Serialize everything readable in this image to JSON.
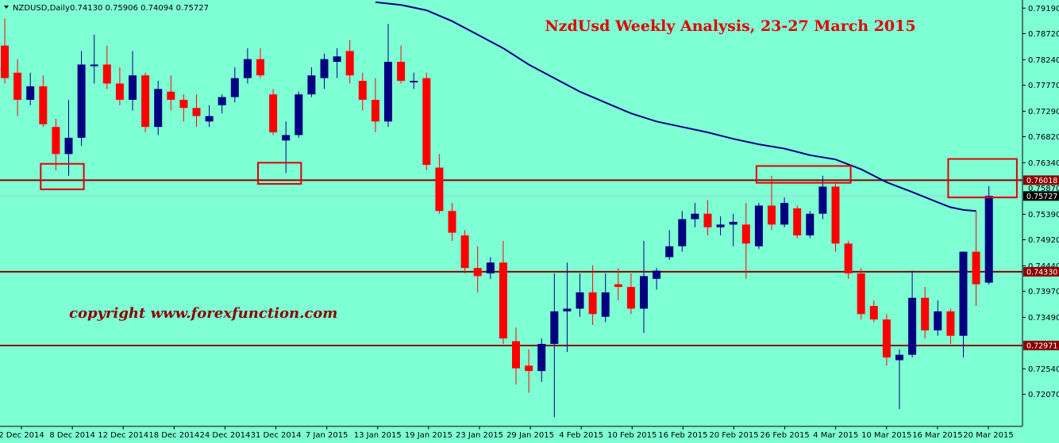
{
  "header": {
    "symbol": "NZDUSD,Daily",
    "ohlc": "0.74130 0.75906 0.74094 0.75727"
  },
  "title": "NzdUsd Weekly Analysis, 23-27 March 2015",
  "copyright": "copyright  www.forexfunction.com",
  "colors": {
    "background": "#7fffd4",
    "bull": "#000080",
    "bear": "#ff0000",
    "ma": "#000080",
    "level_line": "#8b0000",
    "box": "#e00000"
  },
  "chart_data": {
    "type": "candlestick",
    "ylim": [
      0.7148,
      0.7934
    ],
    "y_ticks": [
      "0.79190",
      "0.78720",
      "0.78240",
      "0.77770",
      "0.77290",
      "0.76820",
      "0.76340",
      "0.75390",
      "0.74920",
      "0.74440",
      "0.73970",
      "0.73490",
      "0.72540",
      "0.72070"
    ],
    "x_ticks": [
      "2 Dec 2014",
      "8 Dec 2014",
      "12 Dec 2014",
      "18 Dec 2014",
      "24 Dec 2014",
      "31 Dec 2014",
      "7 Jan 2015",
      "13 Jan 2015",
      "19 Jan 2015",
      "23 Jan 2015",
      "29 Jan 2015",
      "4 Feb 2015",
      "10 Feb 2015",
      "16 Feb 2015",
      "20 Feb 2015",
      "26 Feb 2015",
      "4 Mar 2015",
      "10 Mar 2015",
      "16 Mar 2015",
      "20 Mar 2015"
    ],
    "horizontal_levels": [
      {
        "value": 0.76018,
        "label": "0.76018"
      },
      {
        "value": 0.7433,
        "label": "0.74330"
      },
      {
        "value": 0.72971,
        "label": "0.72971"
      }
    ],
    "price_labels": [
      {
        "value": 0.7587,
        "label": "0.75870"
      },
      {
        "value": 0.75727,
        "label": "0.75727"
      }
    ],
    "candles": [
      {
        "o": 0.785,
        "h": 0.79,
        "l": 0.778,
        "c": 0.779
      },
      {
        "o": 0.78,
        "h": 0.7825,
        "l": 0.772,
        "c": 0.775
      },
      {
        "o": 0.775,
        "h": 0.78,
        "l": 0.774,
        "c": 0.7775
      },
      {
        "o": 0.7775,
        "h": 0.7795,
        "l": 0.77,
        "c": 0.7705
      },
      {
        "o": 0.77,
        "h": 0.7715,
        "l": 0.762,
        "c": 0.765
      },
      {
        "o": 0.765,
        "h": 0.775,
        "l": 0.761,
        "c": 0.768
      },
      {
        "o": 0.768,
        "h": 0.784,
        "l": 0.7665,
        "c": 0.7815
      },
      {
        "o": 0.7812,
        "h": 0.787,
        "l": 0.778,
        "c": 0.7815
      },
      {
        "o": 0.7815,
        "h": 0.785,
        "l": 0.777,
        "c": 0.778
      },
      {
        "o": 0.778,
        "h": 0.781,
        "l": 0.774,
        "c": 0.775
      },
      {
        "o": 0.775,
        "h": 0.784,
        "l": 0.773,
        "c": 0.7795
      },
      {
        "o": 0.7795,
        "h": 0.78,
        "l": 0.769,
        "c": 0.77
      },
      {
        "o": 0.77,
        "h": 0.7785,
        "l": 0.7685,
        "c": 0.777
      },
      {
        "o": 0.7765,
        "h": 0.7795,
        "l": 0.773,
        "c": 0.775
      },
      {
        "o": 0.775,
        "h": 0.776,
        "l": 0.771,
        "c": 0.7735
      },
      {
        "o": 0.7735,
        "h": 0.776,
        "l": 0.77,
        "c": 0.772
      },
      {
        "o": 0.771,
        "h": 0.774,
        "l": 0.77,
        "c": 0.772
      },
      {
        "o": 0.774,
        "h": 0.776,
        "l": 0.7725,
        "c": 0.7755
      },
      {
        "o": 0.7755,
        "h": 0.781,
        "l": 0.7745,
        "c": 0.779
      },
      {
        "o": 0.779,
        "h": 0.7845,
        "l": 0.778,
        "c": 0.7825
      },
      {
        "o": 0.7825,
        "h": 0.7845,
        "l": 0.779,
        "c": 0.7795
      },
      {
        "o": 0.776,
        "h": 0.777,
        "l": 0.7685,
        "c": 0.769
      },
      {
        "o": 0.7675,
        "h": 0.771,
        "l": 0.7615,
        "c": 0.7685
      },
      {
        "o": 0.7685,
        "h": 0.7765,
        "l": 0.768,
        "c": 0.776
      },
      {
        "o": 0.776,
        "h": 0.781,
        "l": 0.7755,
        "c": 0.7795
      },
      {
        "o": 0.779,
        "h": 0.7835,
        "l": 0.777,
        "c": 0.7825
      },
      {
        "o": 0.782,
        "h": 0.7845,
        "l": 0.779,
        "c": 0.783
      },
      {
        "o": 0.784,
        "h": 0.786,
        "l": 0.778,
        "c": 0.7795
      },
      {
        "o": 0.7785,
        "h": 0.78,
        "l": 0.773,
        "c": 0.775
      },
      {
        "o": 0.775,
        "h": 0.779,
        "l": 0.769,
        "c": 0.771
      },
      {
        "o": 0.771,
        "h": 0.789,
        "l": 0.77,
        "c": 0.782
      },
      {
        "o": 0.782,
        "h": 0.785,
        "l": 0.778,
        "c": 0.7785
      },
      {
        "o": 0.7785,
        "h": 0.78,
        "l": 0.777,
        "c": 0.7785
      },
      {
        "o": 0.779,
        "h": 0.78,
        "l": 0.762,
        "c": 0.763
      },
      {
        "o": 0.7625,
        "h": 0.765,
        "l": 0.754,
        "c": 0.7545
      },
      {
        "o": 0.7545,
        "h": 0.756,
        "l": 0.749,
        "c": 0.7505
      },
      {
        "o": 0.75,
        "h": 0.751,
        "l": 0.743,
        "c": 0.744
      },
      {
        "o": 0.744,
        "h": 0.748,
        "l": 0.7395,
        "c": 0.7425
      },
      {
        "o": 0.743,
        "h": 0.746,
        "l": 0.742,
        "c": 0.745
      },
      {
        "o": 0.745,
        "h": 0.749,
        "l": 0.73,
        "c": 0.731
      },
      {
        "o": 0.7305,
        "h": 0.733,
        "l": 0.7225,
        "c": 0.7255
      },
      {
        "o": 0.726,
        "h": 0.729,
        "l": 0.721,
        "c": 0.725
      },
      {
        "o": 0.725,
        "h": 0.731,
        "l": 0.723,
        "c": 0.73
      },
      {
        "o": 0.73,
        "h": 0.743,
        "l": 0.7165,
        "c": 0.736
      },
      {
        "o": 0.736,
        "h": 0.745,
        "l": 0.7285,
        "c": 0.7365
      },
      {
        "o": 0.7365,
        "h": 0.743,
        "l": 0.735,
        "c": 0.7395
      },
      {
        "o": 0.7395,
        "h": 0.7445,
        "l": 0.7335,
        "c": 0.7355
      },
      {
        "o": 0.735,
        "h": 0.743,
        "l": 0.734,
        "c": 0.7395
      },
      {
        "o": 0.741,
        "h": 0.744,
        "l": 0.738,
        "c": 0.7405
      },
      {
        "o": 0.7405,
        "h": 0.743,
        "l": 0.7355,
        "c": 0.7365
      },
      {
        "o": 0.7365,
        "h": 0.749,
        "l": 0.732,
        "c": 0.7425
      },
      {
        "o": 0.742,
        "h": 0.744,
        "l": 0.74,
        "c": 0.7435
      },
      {
        "o": 0.746,
        "h": 0.751,
        "l": 0.7455,
        "c": 0.748
      },
      {
        "o": 0.748,
        "h": 0.7545,
        "l": 0.747,
        "c": 0.753
      },
      {
        "o": 0.753,
        "h": 0.756,
        "l": 0.7515,
        "c": 0.754
      },
      {
        "o": 0.754,
        "h": 0.7565,
        "l": 0.75,
        "c": 0.7515
      },
      {
        "o": 0.7515,
        "h": 0.7535,
        "l": 0.75,
        "c": 0.752
      },
      {
        "o": 0.752,
        "h": 0.754,
        "l": 0.748,
        "c": 0.7525
      },
      {
        "o": 0.752,
        "h": 0.756,
        "l": 0.742,
        "c": 0.7485
      },
      {
        "o": 0.748,
        "h": 0.756,
        "l": 0.7475,
        "c": 0.7555
      },
      {
        "o": 0.7555,
        "h": 0.761,
        "l": 0.751,
        "c": 0.752
      },
      {
        "o": 0.752,
        "h": 0.757,
        "l": 0.7515,
        "c": 0.756
      },
      {
        "o": 0.755,
        "h": 0.7555,
        "l": 0.7495,
        "c": 0.75
      },
      {
        "o": 0.75,
        "h": 0.7545,
        "l": 0.7495,
        "c": 0.754
      },
      {
        "o": 0.754,
        "h": 0.761,
        "l": 0.753,
        "c": 0.759
      },
      {
        "o": 0.759,
        "h": 0.7595,
        "l": 0.747,
        "c": 0.7485
      },
      {
        "o": 0.7485,
        "h": 0.749,
        "l": 0.742,
        "c": 0.743
      },
      {
        "o": 0.743,
        "h": 0.744,
        "l": 0.7345,
        "c": 0.7355
      },
      {
        "o": 0.737,
        "h": 0.738,
        "l": 0.734,
        "c": 0.7345
      },
      {
        "o": 0.7345,
        "h": 0.7355,
        "l": 0.726,
        "c": 0.7275
      },
      {
        "o": 0.727,
        "h": 0.729,
        "l": 0.718,
        "c": 0.728
      },
      {
        "o": 0.728,
        "h": 0.7435,
        "l": 0.7275,
        "c": 0.7385
      },
      {
        "o": 0.7385,
        "h": 0.7405,
        "l": 0.731,
        "c": 0.7325
      },
      {
        "o": 0.7325,
        "h": 0.738,
        "l": 0.7315,
        "c": 0.736
      },
      {
        "o": 0.736,
        "h": 0.7365,
        "l": 0.73,
        "c": 0.7315
      },
      {
        "o": 0.7315,
        "h": 0.747,
        "l": 0.7275,
        "c": 0.747
      },
      {
        "o": 0.747,
        "h": 0.7545,
        "l": 0.737,
        "c": 0.741
      },
      {
        "o": 0.7413,
        "h": 0.75906,
        "l": 0.74094,
        "c": 0.75727
      }
    ],
    "ma": [
      {
        "i": 29,
        "v": 0.793
      },
      {
        "i": 31,
        "v": 0.7925
      },
      {
        "i": 33,
        "v": 0.7915
      },
      {
        "i": 35,
        "v": 0.7895
      },
      {
        "i": 37,
        "v": 0.787
      },
      {
        "i": 39,
        "v": 0.7845
      },
      {
        "i": 41,
        "v": 0.7815
      },
      {
        "i": 43,
        "v": 0.779
      },
      {
        "i": 45,
        "v": 0.7765
      },
      {
        "i": 47,
        "v": 0.7745
      },
      {
        "i": 49,
        "v": 0.7725
      },
      {
        "i": 51,
        "v": 0.771
      },
      {
        "i": 53,
        "v": 0.77
      },
      {
        "i": 55,
        "v": 0.769
      },
      {
        "i": 57,
        "v": 0.7678
      },
      {
        "i": 59,
        "v": 0.7668
      },
      {
        "i": 61,
        "v": 0.766
      },
      {
        "i": 63,
        "v": 0.7648
      },
      {
        "i": 65,
        "v": 0.764
      },
      {
        "i": 67,
        "v": 0.7622
      },
      {
        "i": 69,
        "v": 0.7598
      },
      {
        "i": 71,
        "v": 0.758
      },
      {
        "i": 73,
        "v": 0.7561
      },
      {
        "i": 74,
        "v": 0.7552
      },
      {
        "i": 75,
        "v": 0.7547
      },
      {
        "i": 76,
        "v": 0.7545
      }
    ],
    "boxes": [
      {
        "i0": 3,
        "i1": 6,
        "y0": 0.7585,
        "y1": 0.7632
      },
      {
        "i0": 20,
        "i1": 23,
        "y0": 0.7595,
        "y1": 0.7634
      },
      {
        "i0": 59,
        "i1": 66,
        "y0": 0.7597,
        "y1": 0.7628
      },
      {
        "i0": 74,
        "i1": 79,
        "y0": 0.757,
        "y1": 0.7641
      }
    ]
  }
}
